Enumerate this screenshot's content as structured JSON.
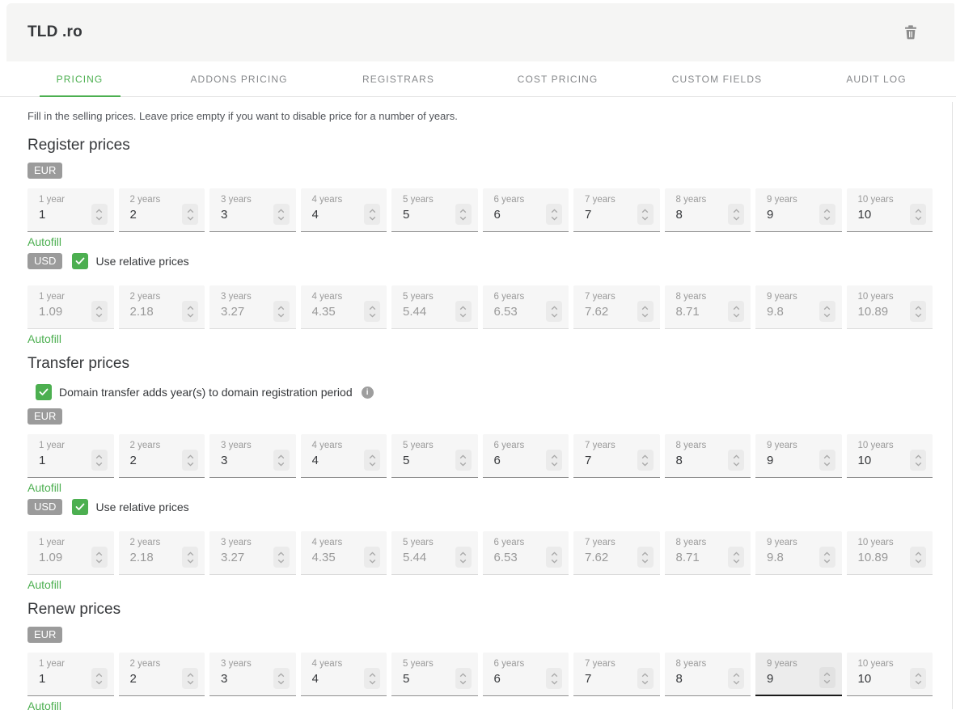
{
  "header": {
    "title": "TLD .ro"
  },
  "tabs": [
    {
      "id": "pricing",
      "label": "PRICING",
      "active": true
    },
    {
      "id": "addons-pricing",
      "label": "ADDONS PRICING",
      "active": false
    },
    {
      "id": "registrars",
      "label": "REGISTRARS",
      "active": false
    },
    {
      "id": "cost-pricing",
      "label": "COST PRICING",
      "active": false
    },
    {
      "id": "custom-fields",
      "label": "CUSTOM FIELDS",
      "active": false
    },
    {
      "id": "audit-log",
      "label": "AUDIT LOG",
      "active": false
    }
  ],
  "intro": "Fill in the selling prices. Leave price empty if you want to disable price for a number of years.",
  "autofill_label": "Autofill",
  "relative_label": "Use relative prices",
  "year_labels": [
    "1 year",
    "2 years",
    "3 years",
    "4 years",
    "5 years",
    "6 years",
    "7 years",
    "8 years",
    "9 years",
    "10 years"
  ],
  "sections": [
    {
      "id": "register",
      "title": "Register prices",
      "rows": [
        {
          "currency": "EUR",
          "disabled": false,
          "relative_checkbox": false,
          "values": [
            "1",
            "2",
            "3",
            "4",
            "5",
            "6",
            "7",
            "8",
            "9",
            "10"
          ]
        },
        {
          "currency": "USD",
          "disabled": true,
          "relative_checkbox": true,
          "relative_checked": true,
          "values": [
            "1.09",
            "2.18",
            "3.27",
            "4.35",
            "5.44",
            "6.53",
            "7.62",
            "8.71",
            "9.8",
            "10.89"
          ]
        }
      ]
    },
    {
      "id": "transfer",
      "title": "Transfer prices",
      "checkbox": {
        "label": "Domain transfer adds year(s) to domain registration period",
        "checked": true,
        "has_info_icon": true
      },
      "rows": [
        {
          "currency": "EUR",
          "disabled": false,
          "relative_checkbox": false,
          "values": [
            "1",
            "2",
            "3",
            "4",
            "5",
            "6",
            "7",
            "8",
            "9",
            "10"
          ]
        },
        {
          "currency": "USD",
          "disabled": true,
          "relative_checkbox": true,
          "relative_checked": true,
          "values": [
            "1.09",
            "2.18",
            "3.27",
            "4.35",
            "5.44",
            "6.53",
            "7.62",
            "8.71",
            "9.8",
            "10.89"
          ]
        }
      ]
    },
    {
      "id": "renew",
      "title": "Renew prices",
      "rows": [
        {
          "currency": "EUR",
          "disabled": false,
          "relative_checkbox": false,
          "focused_index": 8,
          "values": [
            "1",
            "2",
            "3",
            "4",
            "5",
            "6",
            "7",
            "8",
            "9",
            "10"
          ]
        }
      ]
    }
  ],
  "colors": {
    "accent_green": "#4caf50",
    "badge_gray": "#9b9b9b",
    "header_bg": "#f5f5f4",
    "input_bg": "#f6f6f6",
    "text_dark": "#36383b",
    "text_gray": "#9a9a9a"
  }
}
